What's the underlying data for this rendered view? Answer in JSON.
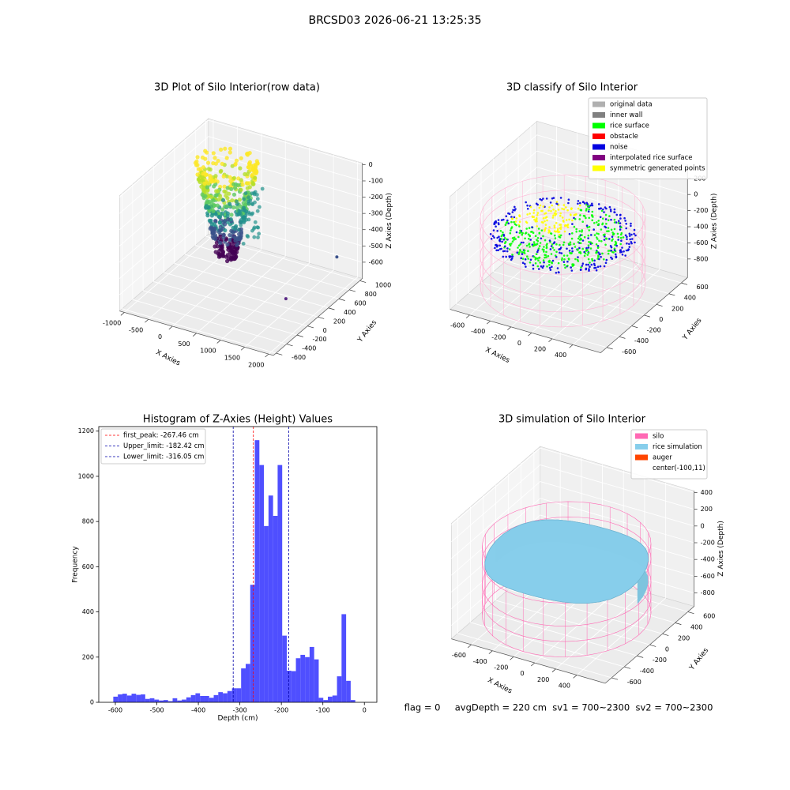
{
  "title": "BRCSD03 2026-06-21 13:25:35",
  "footer": "flag = 0     avgDepth = 220 cm  sv1 = 700~2300  sv2 = 700~2300",
  "chart_data": [
    {
      "type": "scatter3d",
      "title": "3D Plot of Silo Interior(row data)",
      "x_label": "X Axies",
      "y_label": "Y Axies",
      "z_label": "Z Axies (Depth)",
      "xlim": [
        -1100,
        2100
      ],
      "ylim": [
        -650,
        1050
      ],
      "zlim": [
        -700,
        10
      ],
      "xticks": [
        -1000,
        -500,
        0,
        500,
        1000,
        1500,
        2000
      ],
      "yticks": [
        -600,
        -400,
        -200,
        0,
        200,
        400,
        600,
        800,
        1000
      ],
      "zticks": [
        0,
        -100,
        -200,
        -300,
        -400,
        -500,
        -600
      ]
    },
    {
      "type": "scatter3d",
      "title": "3D classify of Silo Interior",
      "x_label": "X Axies",
      "y_label": "Y Axies",
      "z_label": "Z Axies (Depth)",
      "xlim": [
        -790,
        670
      ],
      "ylim": [
        -700,
        700
      ],
      "zlim": [
        -1030,
        370
      ],
      "xticks": [
        -600,
        -400,
        -200,
        0,
        200,
        400
      ],
      "yticks": [
        -600,
        -400,
        -200,
        0,
        200,
        400,
        600
      ],
      "zticks": [
        200,
        0,
        -200,
        -400,
        -600,
        -800
      ],
      "legend": [
        {
          "name": "original data",
          "color": "#b0b0b0"
        },
        {
          "name": "inner wall",
          "color": "#808080"
        },
        {
          "name": "rice surface",
          "color": "#00ff00"
        },
        {
          "name": "obstacle",
          "color": "#ff0000"
        },
        {
          "name": "noise",
          "color": "#0000e0"
        },
        {
          "name": "interpolated rice surface",
          "color": "#800080"
        },
        {
          "name": "symmetric generated points",
          "color": "#ffff00"
        }
      ]
    },
    {
      "type": "histogram",
      "title": "Histogram of Z-Axies (Height) Values",
      "x_label": "Depth (cm)",
      "y_label": "Frequency",
      "color": "#4b4bff",
      "bins": [
        -616,
        -605,
        -594,
        -583,
        -572,
        -561,
        -550,
        -539,
        -528,
        -517,
        -506,
        -495,
        -484,
        -473,
        -462,
        -451,
        -440,
        -429,
        -418,
        -407,
        -396,
        -385,
        -374,
        -363,
        -352,
        -341,
        -330,
        -319,
        -308,
        -297,
        -286,
        -275,
        -264,
        -253,
        -242,
        -231,
        -220,
        -209,
        -198,
        -187,
        -176,
        -165,
        -154,
        -143,
        -132,
        -121,
        -110,
        -99,
        -88,
        -77,
        -66,
        -55,
        -44,
        -33,
        -22,
        -11,
        0
      ],
      "counts": [
        0,
        25,
        35,
        38,
        30,
        38,
        33,
        35,
        15,
        18,
        12,
        8,
        10,
        5,
        18,
        8,
        12,
        22,
        32,
        40,
        28,
        28,
        20,
        32,
        45,
        40,
        50,
        62,
        62,
        150,
        170,
        520,
        1160,
        1050,
        780,
        915,
        825,
        1050,
        295,
        140,
        138,
        195,
        210,
        200,
        245,
        190,
        20,
        10,
        25,
        30,
        115,
        390,
        95,
        10,
        0,
        0
      ],
      "xlim": [
        -640,
        30
      ],
      "ylim": [
        0,
        1220
      ],
      "xticks": [
        -600,
        -500,
        -400,
        -300,
        -200,
        -100,
        0
      ],
      "yticks": [
        0,
        200,
        400,
        600,
        800,
        1000,
        1200
      ],
      "vlines": [
        {
          "value": -267.46,
          "label": "first_peak: -267.46 cm",
          "color": "#ff0000"
        },
        {
          "value": -182.42,
          "label": "Upper_limit: -182.42 cm",
          "color": "#0000aa"
        },
        {
          "value": -316.05,
          "label": "Lower_limit: -316.05 cm",
          "color": "#0000aa"
        }
      ]
    },
    {
      "type": "surface3d",
      "title": "3D simulation of Silo Interior",
      "x_label": "X Axies",
      "y_label": "Y Axies",
      "z_label": "Z Axies (Depth)",
      "xlim": [
        -790,
        670
      ],
      "ylim": [
        -700,
        700
      ],
      "zlim": [
        -960,
        420
      ],
      "xticks": [
        -600,
        -400,
        -200,
        0,
        200,
        400
      ],
      "yticks": [
        -600,
        -400,
        -200,
        0,
        200,
        400,
        600
      ],
      "zticks": [
        400,
        200,
        0,
        -200,
        -400,
        -600,
        -800
      ],
      "legend": [
        {
          "name": "silo",
          "color": "#ff69b4"
        },
        {
          "name": "rice simulation",
          "color": "#87ceeb"
        },
        {
          "name": "auger",
          "color": "#ff4500"
        },
        {
          "name": "center(-100,11)",
          "color": "#ffffff"
        }
      ]
    }
  ]
}
